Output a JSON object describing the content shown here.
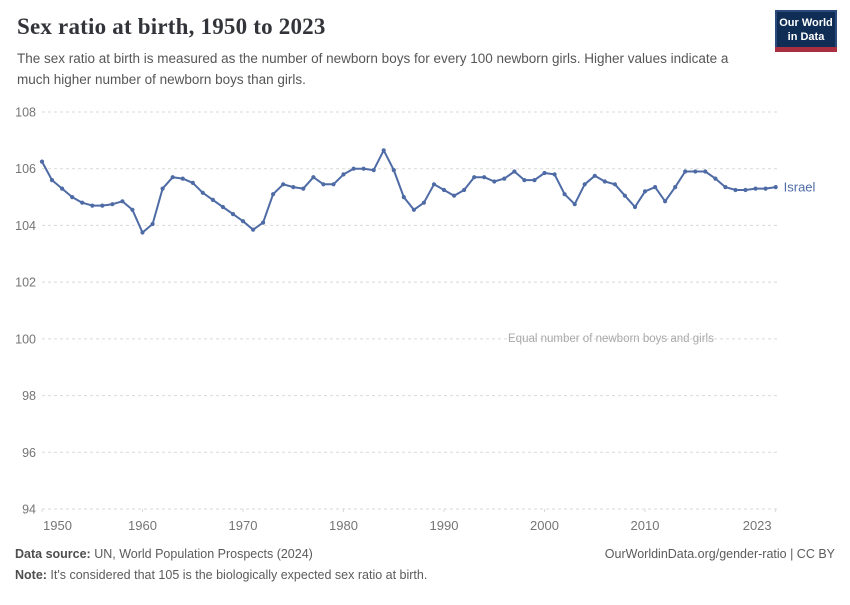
{
  "header": {
    "title": "Sex ratio at birth, 1950 to 2023",
    "subtitle": "The sex ratio at birth is measured as the number of newborn boys for every 100 newborn girls. Higher values indicate a much higher number of newborn boys than girls.",
    "logo_line1": "Our World",
    "logo_line2": "in Data"
  },
  "chart_data": {
    "type": "line",
    "title": "Sex ratio at birth, 1950 to 2023",
    "xlabel": "",
    "ylabel": "",
    "ylim": [
      94,
      108
    ],
    "yticks": [
      108,
      106,
      104,
      102,
      100,
      98,
      96,
      94
    ],
    "xticks": [
      1950,
      1960,
      1970,
      1980,
      1990,
      2000,
      2010,
      2023
    ],
    "grid": "horizontal dashed",
    "legend_position": "end-of-line label",
    "annotation": {
      "text": "Equal number of newborn boys and girls",
      "y": 100
    },
    "x": [
      1950,
      1951,
      1952,
      1953,
      1954,
      1955,
      1956,
      1957,
      1958,
      1959,
      1960,
      1961,
      1962,
      1963,
      1964,
      1965,
      1966,
      1967,
      1968,
      1969,
      1970,
      1971,
      1972,
      1973,
      1974,
      1975,
      1976,
      1977,
      1978,
      1979,
      1980,
      1981,
      1982,
      1983,
      1984,
      1985,
      1986,
      1987,
      1988,
      1989,
      1990,
      1991,
      1992,
      1993,
      1994,
      1995,
      1996,
      1997,
      1998,
      1999,
      2000,
      2001,
      2002,
      2003,
      2004,
      2005,
      2006,
      2007,
      2008,
      2009,
      2010,
      2011,
      2012,
      2013,
      2014,
      2015,
      2016,
      2017,
      2018,
      2019,
      2020,
      2021,
      2022,
      2023
    ],
    "series": [
      {
        "name": "Israel",
        "color": "#4e6ba5",
        "values": [
          106.25,
          105.6,
          105.3,
          105.0,
          104.8,
          104.7,
          104.7,
          104.75,
          104.85,
          104.55,
          103.75,
          104.05,
          105.3,
          105.7,
          105.65,
          105.5,
          105.15,
          104.9,
          104.65,
          104.4,
          104.15,
          103.85,
          104.1,
          105.1,
          105.45,
          105.35,
          105.3,
          105.7,
          105.45,
          105.45,
          105.8,
          106.0,
          106.0,
          105.95,
          106.65,
          105.95,
          105.0,
          104.55,
          104.8,
          105.45,
          105.25,
          105.05,
          105.25,
          105.7,
          105.7,
          105.55,
          105.65,
          105.9,
          105.6,
          105.6,
          105.85,
          105.8,
          105.1,
          104.75,
          105.45,
          105.75,
          105.55,
          105.45,
          105.05,
          104.65,
          105.2,
          105.35,
          104.85,
          105.35,
          105.9,
          105.9,
          105.9,
          105.65,
          105.35,
          105.25,
          105.25,
          105.3,
          105.3,
          105.35
        ]
      }
    ]
  },
  "footer": {
    "datasource_label": "Data source:",
    "datasource_text": " UN, World Population Prospects (2024)",
    "note_label": "Note:",
    "note_text": " It's considered that 105 is the biologically expected sex ratio at birth.",
    "link_text": "OurWorldinData.org/gender-ratio | CC BY"
  },
  "colors": {
    "series": "#4e6ba5",
    "grid": "#d9d9d9",
    "axis_text": "#757575",
    "annotation_text": "#a9a9a9",
    "logo_navy": "#0f2d55",
    "logo_red": "#a82e40"
  }
}
